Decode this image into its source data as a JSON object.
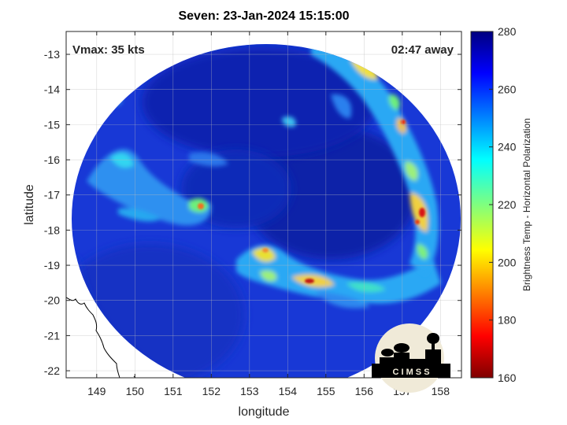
{
  "chart_data": {
    "type": "heatmap",
    "title": "Seven: 23-Jan-2024 15:15:00",
    "xlabel": "longitude",
    "ylabel": "latitude",
    "xlim": [
      148.2,
      158.55
    ],
    "ylim": [
      -22.2,
      -12.35
    ],
    "xticks": [
      149,
      150,
      151,
      152,
      153,
      154,
      155,
      156,
      157,
      158
    ],
    "yticks": [
      -13,
      -14,
      -15,
      -16,
      -17,
      -18,
      -19,
      -20,
      -21,
      -22
    ],
    "grid": true,
    "colorbar": {
      "label": "Brightness Temp - Horizontal Polarization",
      "range": [
        160,
        280
      ],
      "ticks": [
        280,
        260,
        240,
        220,
        200,
        180,
        160
      ],
      "colormap": "jet"
    },
    "annotations": {
      "left": "Vmax: 35 kts",
      "right": "02:47 away"
    },
    "logo_text": "C I M S S"
  },
  "colors": {
    "background_cold": "#0a1a9e",
    "swath_base": "#1a3adf",
    "grid": "#d9d9d9",
    "coastline": "#000000"
  }
}
